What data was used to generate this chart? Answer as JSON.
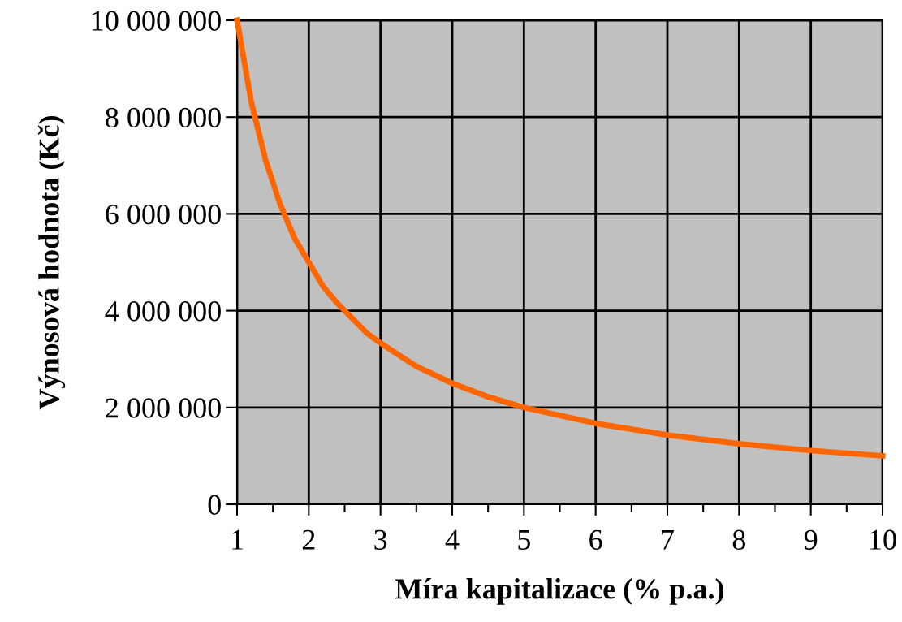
{
  "chart_data": {
    "type": "line",
    "xlabel": "Míra kapitalizace (% p.a.)",
    "ylabel": "Výnosová hodnota (Kč)",
    "x": [
      1,
      1.2,
      1.4,
      1.6,
      1.8,
      2,
      2.2,
      2.4,
      2.6,
      2.8,
      3,
      3.5,
      4,
      4.5,
      5,
      6,
      7,
      8,
      9,
      10
    ],
    "series": [
      {
        "color": "#ff6600",
        "values": [
          10000000,
          8300000,
          7100000,
          6200000,
          5500000,
          5000000,
          4500000,
          4150000,
          3850000,
          3550000,
          3330000,
          2850000,
          2500000,
          2220000,
          2000000,
          1670000,
          1430000,
          1250000,
          1110000,
          1000000
        ]
      }
    ],
    "xlim": [
      1,
      10
    ],
    "xticks": [
      1,
      2,
      3,
      4,
      5,
      6,
      7,
      8,
      9,
      10
    ],
    "ylim": [
      0,
      10000000
    ],
    "yticks": [
      0,
      {
        "value": 2000000,
        "label": "2 000 000"
      },
      {
        "value": 4000000,
        "label": "4 000 000"
      },
      {
        "value": 6000000,
        "label": "6 000 000"
      },
      {
        "value": 8000000,
        "label": "8 000 000"
      },
      {
        "value": 10000000,
        "label": "10 000 000"
      }
    ],
    "grid": true,
    "marker": "none",
    "line_style": "solid",
    "legend": false
  }
}
